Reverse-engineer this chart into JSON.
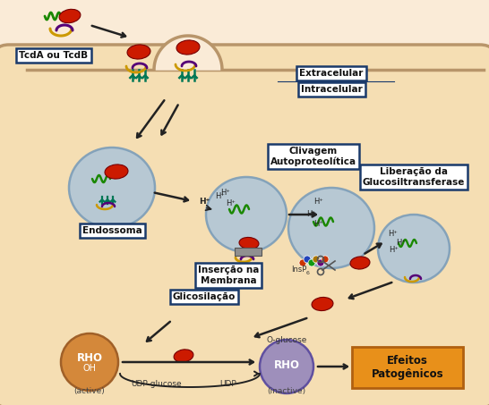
{
  "bg_color": "#faebd7",
  "cell_color": "#f5deb3",
  "cell_edge_color": "#b8956a",
  "vesicle_color": "#afc5d8",
  "vesicle_edge": "#7a9cb8",
  "label_box_color": "#ffffff",
  "label_box_edge": "#1a3a6b",
  "orange_box_color": "#e8901a",
  "orange_box_edge": "#b06010",
  "rho_active_color": "#d4883a",
  "rho_inactive_color": "#9e8fbb",
  "red_color": "#cc1a00",
  "green_color": "#1a8800",
  "gold_color": "#cc9900",
  "purple_color": "#550077",
  "teal_color": "#007755",
  "labels": {
    "tcd": "TcdA ou TcdB",
    "extra": "Extracelular",
    "intra": "Intracelular",
    "endossoma": "Endossoma",
    "insercao": "Inserção na\nMembrana",
    "clivagem": "Clivagem\nAutoproteolítica",
    "liberacao": "Liberação da\nGlucosiltransferase",
    "glicosilacao": "Glicosilação",
    "oh": "OH",
    "rho": "RHO",
    "active": "(active)",
    "udp_glucose": "UDP-glucose",
    "udp": "UDP",
    "o_glucose": "O-glucose",
    "inactive": "(inactive)",
    "efeitos": "Efeitos\nPatogênicos"
  }
}
